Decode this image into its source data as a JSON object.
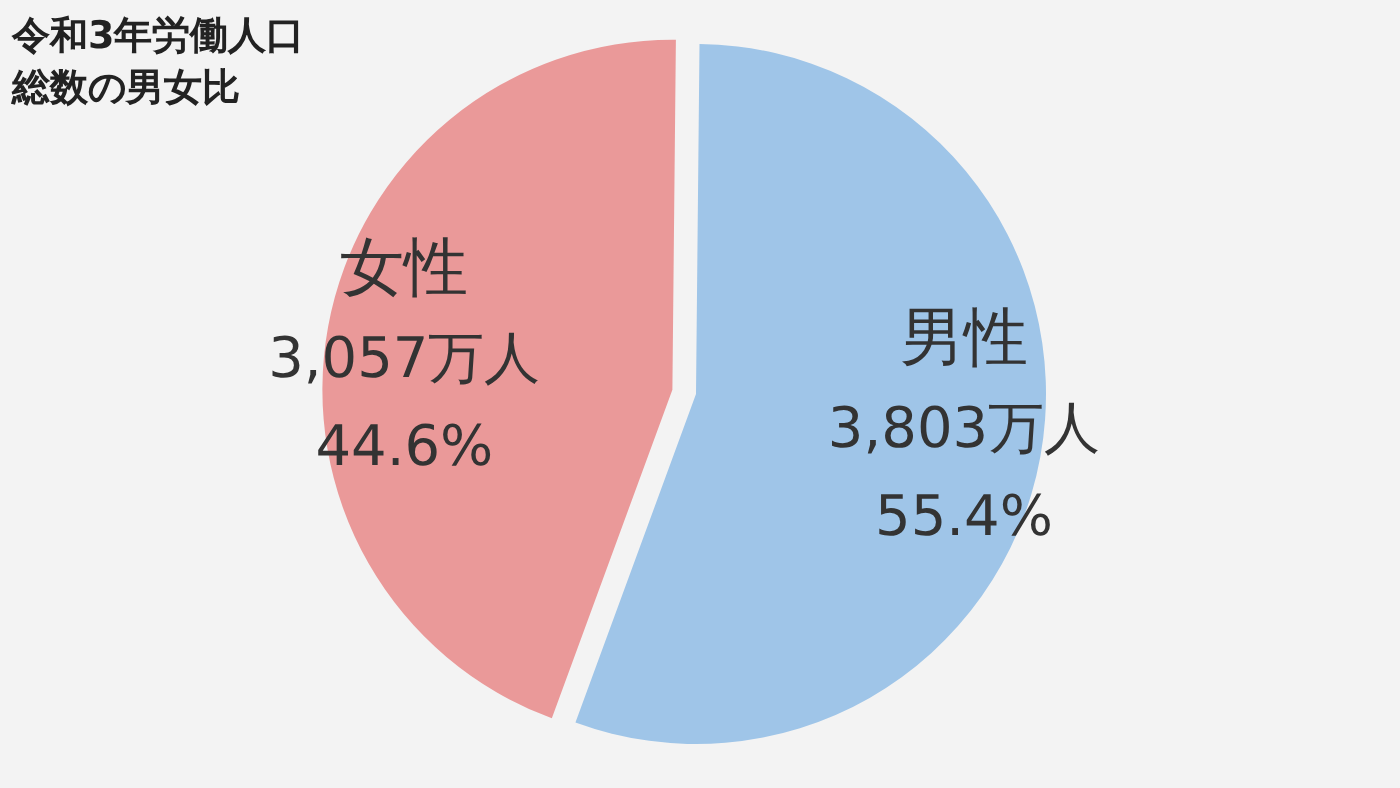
{
  "chart_data": {
    "type": "pie",
    "title": "令和3年労働人口総数の男女比",
    "categories": [
      "男性",
      "女性"
    ],
    "values": [
      3803,
      3057
    ],
    "colors": [
      "#9fc5e8",
      "#ea9999"
    ],
    "value_labels": [
      "3,803万人",
      "3,057万人"
    ],
    "annotations": [
      {
        "text": "55.4%",
        "x": "男性"
      },
      {
        "text": "44.6%",
        "x": "女性"
      }
    ]
  }
}
